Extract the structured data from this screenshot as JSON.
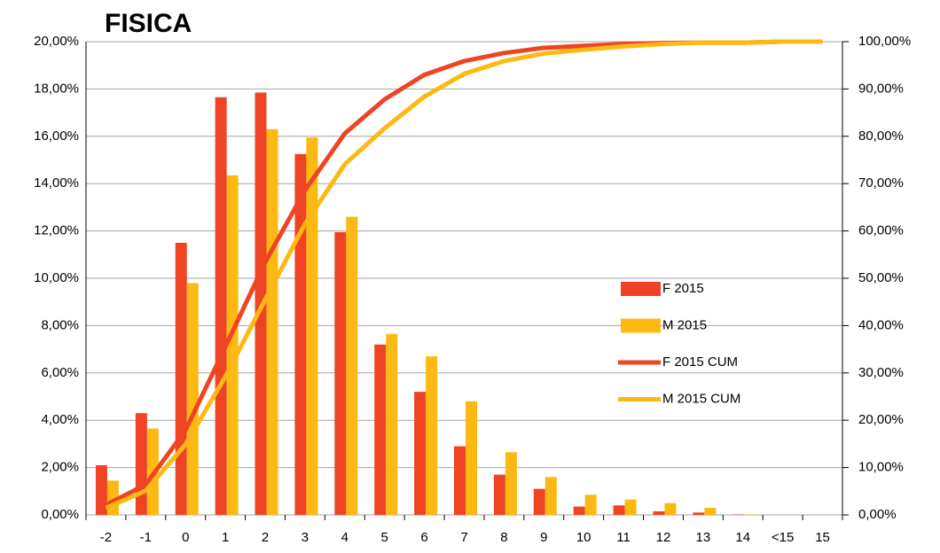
{
  "chart_data": {
    "type": "bar",
    "title": "FISICA",
    "categories": [
      "-2",
      "-1",
      "0",
      "1",
      "2",
      "3",
      "4",
      "5",
      "6",
      "7",
      "8",
      "9",
      "10",
      "11",
      "12",
      "13",
      "14",
      "<15",
      "15"
    ],
    "series": [
      {
        "name": "F 2015",
        "color": "#ee4423",
        "values": [
          2.1,
          4.3,
          11.5,
          17.65,
          17.85,
          15.25,
          11.95,
          7.2,
          5.2,
          2.9,
          1.7,
          1.1,
          0.35,
          0.4,
          0.15,
          0.1,
          0.02,
          0,
          0
        ]
      },
      {
        "name": "M 2015",
        "color": "#fdb913",
        "values": [
          1.45,
          3.65,
          9.8,
          14.35,
          16.3,
          15.95,
          12.6,
          7.65,
          6.7,
          4.8,
          2.65,
          1.6,
          0.85,
          0.65,
          0.5,
          0.3,
          0.02,
          0,
          0
        ]
      },
      {
        "name": "F 2015 CUM",
        "color": "#ee4423",
        "type": "line",
        "axis": "y2",
        "values": [
          2.1,
          6.4,
          17.9,
          35.5,
          53.4,
          68.6,
          80.6,
          87.8,
          93,
          95.9,
          97.6,
          98.7,
          99.1,
          99.5,
          99.7,
          99.8,
          99.8,
          100,
          100
        ]
      },
      {
        "name": "M 2015 CUM",
        "color": "#fdb913",
        "type": "line",
        "axis": "y2",
        "values": [
          1.45,
          5.1,
          14.9,
          29.2,
          45.5,
          61.5,
          74.1,
          81.7,
          88.4,
          93.2,
          95.9,
          97.5,
          98.3,
          99,
          99.5,
          99.8,
          99.8,
          100,
          100
        ]
      }
    ],
    "ylim": [
      0,
      20
    ],
    "yticks": [
      {
        "value": 0,
        "label": "0,00%"
      },
      {
        "value": 2,
        "label": "2,00%"
      },
      {
        "value": 4,
        "label": "4,00%"
      },
      {
        "value": 6,
        "label": "6,00%"
      },
      {
        "value": 8,
        "label": "8,00%"
      },
      {
        "value": 10,
        "label": "10,00%"
      },
      {
        "value": 12,
        "label": "12,00%"
      },
      {
        "value": 14,
        "label": "14,00%"
      },
      {
        "value": 16,
        "label": "16,00%"
      },
      {
        "value": 18,
        "label": "18,00%"
      },
      {
        "value": 20,
        "label": "20,00%"
      }
    ],
    "y2lim": [
      0,
      100
    ],
    "y2ticks": [
      {
        "value": 0,
        "label": "0,00%"
      },
      {
        "value": 10,
        "label": "10,00%"
      },
      {
        "value": 20,
        "label": "20,00%"
      },
      {
        "value": 30,
        "label": "30,00%"
      },
      {
        "value": 40,
        "label": "40,00%"
      },
      {
        "value": 50,
        "label": "50,00%"
      },
      {
        "value": 60,
        "label": "60,00%"
      },
      {
        "value": 70,
        "label": "70,00%"
      },
      {
        "value": 80,
        "label": "80,00%"
      },
      {
        "value": 90,
        "label": "90,00%"
      },
      {
        "value": 100,
        "label": "100,00%"
      }
    ],
    "grid": true
  }
}
